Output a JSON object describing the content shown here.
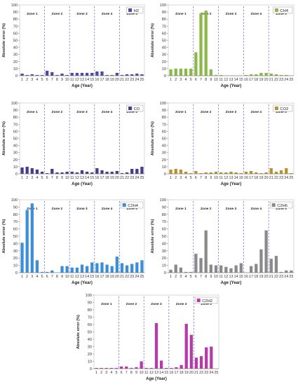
{
  "chart_data": [
    {
      "type": "bar",
      "legend": "H2",
      "color": "#4a4aa8",
      "xlabel": "Age (Year)",
      "ylabel": "Absolute error (%)",
      "ylim": [
        0,
        100
      ],
      "yticks": [
        "0",
        "10",
        "20",
        "30",
        "40",
        "50",
        "60",
        "70",
        "80",
        "90",
        "100"
      ],
      "x": [
        1,
        2,
        3,
        4,
        5,
        6,
        7,
        8,
        9,
        10,
        11,
        12,
        13,
        14,
        15,
        16,
        17,
        18,
        19,
        20,
        21,
        22,
        23,
        24,
        25
      ],
      "xtick_labels": [
        "1",
        "2",
        "3",
        "4",
        "5",
        "6",
        "7",
        "8",
        "9",
        "10",
        "11",
        "12",
        "13",
        "14",
        "15",
        "16",
        "17",
        "18",
        "19",
        "20",
        "21",
        "22",
        "23",
        "24",
        "25"
      ],
      "values": [
        3,
        1,
        2,
        1,
        1,
        7,
        5,
        1,
        3,
        1,
        4,
        4,
        4,
        4,
        4,
        6,
        6,
        1,
        1,
        4,
        1,
        2,
        2,
        3,
        2
      ],
      "zones": [
        "Zone 1",
        "Zone 2",
        "Zone 3",
        "Zone 4",
        "Zone 5"
      ],
      "legend_position": "top-right",
      "grid": false
    },
    {
      "type": "bar",
      "legend": "CH4",
      "color": "#8cb84a",
      "xlabel": "Age (Year)",
      "ylabel": "Absolute error (%)",
      "ylim": [
        0,
        100
      ],
      "yticks": [
        "0",
        "10",
        "20",
        "30",
        "40",
        "50",
        "60",
        "70",
        "80",
        "90",
        "100"
      ],
      "x": [
        1,
        2,
        3,
        4,
        5,
        6,
        7,
        8,
        9,
        10,
        11,
        12,
        13,
        14,
        15,
        16,
        17,
        18,
        19,
        20,
        21,
        22,
        23,
        24,
        25
      ],
      "xtick_labels": [
        "1",
        "2",
        "3",
        "4",
        "5",
        "6",
        "7",
        "8",
        "9",
        "10",
        "11",
        "12",
        "13",
        "14",
        "15",
        "16",
        "17",
        "18",
        "19",
        "20",
        "21",
        "22",
        "23",
        "24",
        "25"
      ],
      "values": [
        9,
        10,
        10,
        10,
        10,
        33,
        88,
        92,
        9,
        1,
        1,
        0,
        0,
        0,
        0,
        1,
        2,
        2,
        4,
        4,
        3,
        2,
        1,
        1,
        0
      ],
      "zones": [
        "Zone 1",
        "Zone 2",
        "Zone 3",
        "Zone 4",
        "Zone 5"
      ],
      "legend_position": "top-right",
      "grid": false
    },
    {
      "type": "bar",
      "legend": "CO",
      "color": "#4a3a8a",
      "xlabel": "Age (Year)",
      "ylabel": "Absolute error (%)",
      "ylim": [
        0,
        100
      ],
      "yticks": [
        "0",
        "10",
        "20",
        "30",
        "40",
        "50",
        "60",
        "70",
        "80",
        "90",
        "100"
      ],
      "x": [
        1,
        2,
        3,
        4,
        5,
        6,
        7,
        8,
        9,
        10,
        11,
        12,
        13,
        14,
        15,
        16,
        17,
        18,
        19,
        20,
        21,
        22,
        23,
        24,
        25
      ],
      "xtick_labels": [
        "1",
        "2",
        "3",
        "4",
        "5",
        "6",
        "7",
        "8",
        "9",
        "10",
        "11",
        "12",
        "13",
        "14",
        "15",
        "16",
        "17",
        "18",
        "19",
        "20",
        "21",
        "22",
        "23",
        "24",
        "25"
      ],
      "values": [
        9,
        10,
        8,
        6,
        3,
        1,
        7,
        2,
        2,
        3,
        3,
        2,
        5,
        3,
        2,
        8,
        5,
        3,
        3,
        4,
        1,
        2,
        7,
        7,
        10
      ],
      "zones": [
        "Zone 1",
        "Zone 2",
        "Zone 3",
        "Zone 4",
        "Zone 5"
      ],
      "legend_position": "top-right",
      "grid": false
    },
    {
      "type": "bar",
      "legend": "CO2",
      "color": "#b8922e",
      "xlabel": "Age (Year)",
      "ylabel": "Absolute error (%)",
      "ylim": [
        0,
        100
      ],
      "yticks": [
        "0",
        "10",
        "20",
        "30",
        "40",
        "50",
        "60",
        "70",
        "80",
        "90",
        "100"
      ],
      "x": [
        1,
        2,
        3,
        4,
        5,
        6,
        7,
        8,
        9,
        10,
        11,
        12,
        13,
        14,
        15,
        16,
        17,
        18,
        19,
        20,
        21,
        22,
        23,
        24,
        25
      ],
      "xtick_labels": [
        "1",
        "2",
        "3",
        "4",
        "5",
        "6",
        "7",
        "8",
        "9",
        "10",
        "11",
        "12",
        "13",
        "14",
        "15",
        "16",
        "17",
        "18",
        "19",
        "20",
        "21",
        "22",
        "23",
        "24",
        "25"
      ],
      "values": [
        6,
        7,
        6,
        3,
        1,
        4,
        1,
        2,
        2,
        3,
        2,
        2,
        3,
        2,
        1,
        3,
        4,
        2,
        1,
        2,
        8,
        3,
        5,
        8,
        1
      ],
      "zones": [
        "Zone 1",
        "Zone 2",
        "Zone 3",
        "Zone 4",
        "Zone 5"
      ],
      "legend_position": "top-right",
      "grid": false
    },
    {
      "type": "bar",
      "legend": "C2H4",
      "color": "#3a8fd6",
      "xlabel": "Age (Year)",
      "ylabel": "Absolute error (%)",
      "ylim": [
        0,
        100
      ],
      "yticks": [
        "0",
        "10",
        "20",
        "30",
        "40",
        "50",
        "60",
        "70",
        "80",
        "90",
        "100"
      ],
      "x": [
        1,
        2,
        3,
        4,
        5,
        6,
        7,
        8,
        9,
        10,
        11,
        12,
        13,
        14,
        15,
        16,
        17,
        18,
        19,
        20,
        21,
        22,
        23,
        24,
        25
      ],
      "xtick_labels": [
        "1",
        "2",
        "3",
        "4",
        "5",
        "6",
        "7",
        "8",
        "9",
        "10",
        "11",
        "12",
        "13",
        "14",
        "15",
        "16",
        "17",
        "18",
        "19",
        "20",
        "21",
        "22",
        "23",
        "24",
        "25"
      ],
      "values": [
        41,
        86,
        95,
        17,
        1,
        1,
        3,
        0,
        9,
        9,
        7,
        7,
        11,
        9,
        14,
        13,
        14,
        11,
        9,
        22,
        13,
        10,
        12,
        14,
        17
      ],
      "zones": [
        "Zone 1",
        "Zone 2",
        "Zone 3",
        "Zone 4",
        "Zone 5"
      ],
      "legend_position": "top-right",
      "grid": false
    },
    {
      "type": "bar",
      "legend": "C2H6",
      "color": "#8a8a8a",
      "xlabel": "Age (Year)",
      "ylabel": "Absolute error (%)",
      "ylim": [
        0,
        100
      ],
      "yticks": [
        "0",
        "10",
        "20",
        "30",
        "40",
        "50",
        "60",
        "70",
        "80",
        "90",
        "100"
      ],
      "x": [
        1,
        2,
        3,
        4,
        5,
        6,
        7,
        8,
        9,
        10,
        11,
        12,
        13,
        14,
        15,
        16,
        17,
        18,
        19,
        20,
        21,
        22,
        23,
        24,
        25
      ],
      "xtick_labels": [
        "1",
        "2",
        "3",
        "4",
        "5",
        "6",
        "7",
        "8",
        "9",
        "10",
        "11",
        "12",
        "13",
        "14",
        "15",
        "16",
        "17",
        "18",
        "19",
        "20",
        "21",
        "22",
        "23",
        "24",
        "25"
      ],
      "values": [
        4,
        11,
        7,
        1,
        1,
        26,
        20,
        58,
        11,
        10,
        10,
        8,
        6,
        10,
        13,
        0,
        9,
        12,
        32,
        58,
        19,
        23,
        1,
        3,
        3
      ],
      "zones": [
        "Zone 1",
        "Zone 2",
        "Zone 3",
        "Zone 4",
        "Zone 5"
      ],
      "legend_position": "top-right",
      "grid": false
    },
    {
      "type": "bar",
      "legend": "C2H2",
      "color": "#b63aa8",
      "xlabel": "Age (Year)",
      "ylabel": "Absolute error (%)",
      "ylim": [
        0,
        100
      ],
      "yticks": [
        "0",
        "10",
        "20",
        "30",
        "40",
        "50",
        "60",
        "70",
        "80",
        "90",
        "100"
      ],
      "x": [
        1,
        2,
        3,
        4,
        5,
        6,
        7,
        8,
        9,
        10,
        11,
        12,
        13,
        14,
        15,
        16,
        17,
        18,
        19,
        20,
        21,
        22,
        23,
        24,
        25
      ],
      "xtick_labels": [
        "1",
        "2",
        "3",
        "4",
        "5",
        "6",
        "7",
        "8",
        "9",
        "10",
        "11",
        "12",
        "13",
        "14",
        "15",
        "16",
        "17",
        "18",
        "19",
        "20",
        "21",
        "22",
        "23",
        "24",
        "25"
      ],
      "values": [
        1,
        1,
        1,
        1,
        1,
        3,
        3,
        1,
        2,
        10,
        1,
        1,
        62,
        11,
        1,
        1,
        2,
        5,
        61,
        46,
        15,
        17,
        29,
        30,
        0
      ],
      "zones": [
        "Zone 1",
        "Zone 2",
        "Zone 3",
        "Zone 4",
        "Zone 5"
      ],
      "legend_position": "top-right",
      "grid": false
    }
  ]
}
